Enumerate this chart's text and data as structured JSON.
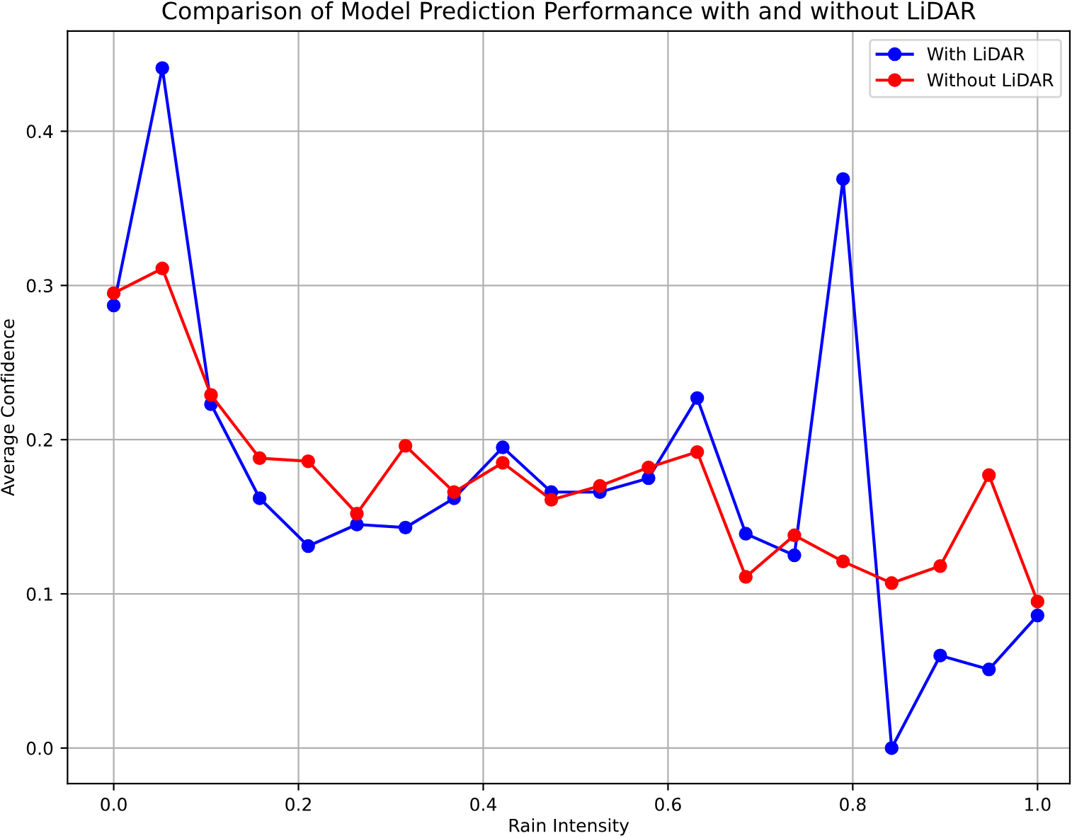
{
  "chart_data": {
    "type": "line",
    "title": "Comparison of Model Prediction Performance with and without LiDAR",
    "xlabel": "Rain Intensity",
    "ylabel": "Average Confidence",
    "x": [
      0,
      0.0526,
      0.1053,
      0.1579,
      0.2105,
      0.2632,
      0.3158,
      0.3684,
      0.4211,
      0.4737,
      0.5263,
      0.5789,
      0.6316,
      0.6842,
      0.7368,
      0.7895,
      0.8421,
      0.8947,
      0.9474,
      1.0
    ],
    "series": [
      {
        "name": "With LiDAR",
        "color": "#0000ff",
        "values": [
          0.287,
          0.441,
          0.223,
          0.162,
          0.131,
          0.145,
          0.143,
          0.162,
          0.195,
          0.166,
          0.166,
          0.175,
          0.227,
          0.139,
          0.125,
          0.369,
          0.0,
          0.06,
          0.051,
          0.086
        ]
      },
      {
        "name": "Without LiDAR",
        "color": "#ff0000",
        "values": [
          0.295,
          0.311,
          0.229,
          0.188,
          0.186,
          0.152,
          0.196,
          0.166,
          0.185,
          0.161,
          0.17,
          0.182,
          0.192,
          0.111,
          0.138,
          0.121,
          0.107,
          0.118,
          0.177,
          0.095
        ]
      }
    ],
    "xlim": [
      -0.05,
      1.035
    ],
    "ylim": [
      -0.023,
      0.465
    ],
    "xticks": [
      {
        "value": 0,
        "label": "0.0"
      },
      0.2,
      0.4,
      0.6,
      0.8,
      {
        "value": 1,
        "label": "1.0"
      }
    ],
    "yticks": [
      {
        "value": 0,
        "label": "0.0"
      },
      0.1,
      0.2,
      0.3,
      0.4
    ],
    "grid": true,
    "legend": "top right",
    "marker": "circle",
    "line_style": "solid"
  }
}
